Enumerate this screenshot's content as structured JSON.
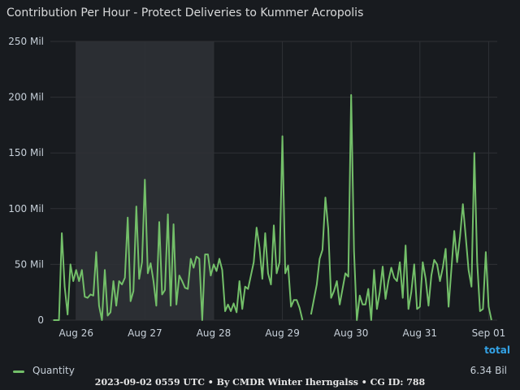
{
  "panel": {
    "title": "Contribution Per Hour - Protect Deliveries to Kummer Acropolis",
    "footer": "2023-09-02 0559 UTC • By CMDR Winter Iherngalss • CG ID: 788"
  },
  "legend": {
    "header": "total",
    "items": [
      {
        "name": "Quantity",
        "total": "6.34 Bil",
        "color": "#73bf69"
      }
    ]
  },
  "colors": {
    "background": "#181b1f",
    "grid": "#2f3136",
    "highlight": "#2b2e33",
    "series": "#73bf69",
    "accent": "#33a2e5"
  },
  "chart_data": {
    "type": "line",
    "title": "Contribution Per Hour - Protect Deliveries to Kummer Acropolis",
    "xlabel": "",
    "ylabel": "",
    "ylim": [
      0,
      250
    ],
    "yunit": "Mil",
    "yticks": [
      "0",
      "50 Mil",
      "100 Mil",
      "150 Mil",
      "200 Mil",
      "250 Mil"
    ],
    "xlim": [
      "Aug 25 15:00",
      "Sep 01 19:00"
    ],
    "xticks": [
      "Aug 26",
      "Aug 27",
      "Aug 28",
      "Aug 29",
      "Aug 30",
      "Aug 31",
      "Sep 01"
    ],
    "highlight_range": [
      "Aug 26",
      "Aug 28"
    ],
    "grid": true,
    "legend_position": "bottom",
    "series": [
      {
        "name": "Quantity",
        "x_unit": "hours since Aug 26 00:00",
        "points": [
          [
            -8,
            0
          ],
          [
            -6,
            0
          ],
          [
            -5,
            78
          ],
          [
            -4,
            30
          ],
          [
            -3,
            5
          ],
          [
            -2,
            50
          ],
          [
            -1,
            35
          ],
          [
            0,
            45
          ],
          [
            1,
            35
          ],
          [
            2,
            45
          ],
          [
            3,
            21
          ],
          [
            4,
            20
          ],
          [
            5,
            23
          ],
          [
            6,
            22
          ],
          [
            7,
            61
          ],
          [
            8,
            13
          ],
          [
            9,
            0
          ],
          [
            10,
            45
          ],
          [
            11,
            4
          ],
          [
            12,
            7
          ],
          [
            13,
            35
          ],
          [
            14,
            13
          ],
          [
            15,
            35
          ],
          [
            16,
            32
          ],
          [
            17,
            38
          ],
          [
            18,
            92
          ],
          [
            19,
            17
          ],
          [
            20,
            26
          ],
          [
            21,
            102
          ],
          [
            22,
            37
          ],
          [
            23,
            52
          ],
          [
            24,
            126
          ],
          [
            25,
            42
          ],
          [
            26,
            51
          ],
          [
            27,
            35
          ],
          [
            28,
            13
          ],
          [
            29,
            88
          ],
          [
            30,
            23
          ],
          [
            31,
            27
          ],
          [
            32,
            95
          ],
          [
            33,
            13
          ],
          [
            34,
            86
          ],
          [
            35,
            14
          ],
          [
            36,
            40
          ],
          [
            37,
            35
          ],
          [
            38,
            29
          ],
          [
            39,
            28
          ],
          [
            40,
            55
          ],
          [
            41,
            47
          ],
          [
            42,
            57
          ],
          [
            43,
            55
          ],
          [
            44,
            0
          ],
          [
            45,
            59
          ],
          [
            46,
            59
          ],
          [
            47,
            40
          ],
          [
            48,
            50
          ],
          [
            49,
            44
          ],
          [
            50,
            55
          ],
          [
            51,
            45
          ],
          [
            52,
            8
          ],
          [
            53,
            14
          ],
          [
            54,
            8
          ],
          [
            55,
            15
          ],
          [
            56,
            7
          ],
          [
            57,
            35
          ],
          [
            58,
            10
          ],
          [
            59,
            30
          ],
          [
            60,
            28
          ],
          [
            62,
            52
          ],
          [
            63,
            83
          ],
          [
            64,
            65
          ],
          [
            65,
            37
          ],
          [
            66,
            78
          ],
          [
            67,
            42
          ],
          [
            68,
            32
          ],
          [
            69,
            85
          ],
          [
            70,
            42
          ],
          [
            71,
            52
          ],
          [
            72,
            165
          ],
          [
            73,
            42
          ],
          [
            74,
            49
          ],
          [
            75,
            12
          ],
          [
            76,
            18
          ],
          [
            77,
            18
          ],
          [
            78,
            11
          ],
          [
            79,
            0
          ],
          [
            null,
            null
          ],
          [
            82,
            5
          ],
          [
            84,
            32
          ],
          [
            85,
            55
          ],
          [
            86,
            63
          ],
          [
            87,
            110
          ],
          [
            88,
            82
          ],
          [
            89,
            20
          ],
          [
            90,
            26
          ],
          [
            91,
            35
          ],
          [
            92,
            14
          ],
          [
            93,
            28
          ],
          [
            94,
            42
          ],
          [
            95,
            39
          ],
          [
            96,
            202
          ],
          [
            97,
            62
          ],
          [
            98,
            0
          ],
          [
            99,
            22
          ],
          [
            100,
            14
          ],
          [
            101,
            14
          ],
          [
            102,
            28
          ],
          [
            103,
            0
          ],
          [
            104,
            45
          ],
          [
            105,
            10
          ],
          [
            106,
            25
          ],
          [
            107,
            48
          ],
          [
            108,
            19
          ],
          [
            109,
            35
          ],
          [
            110,
            47
          ],
          [
            111,
            38
          ],
          [
            112,
            35
          ],
          [
            113,
            52
          ],
          [
            114,
            20
          ],
          [
            115,
            67
          ],
          [
            116,
            10
          ],
          [
            117,
            25
          ],
          [
            118,
            50
          ],
          [
            119,
            10
          ],
          [
            120,
            12
          ],
          [
            121,
            52
          ],
          [
            122,
            37
          ],
          [
            123,
            13
          ],
          [
            124,
            40
          ],
          [
            125,
            54
          ],
          [
            126,
            50
          ],
          [
            127,
            35
          ],
          [
            128,
            47
          ],
          [
            129,
            64
          ],
          [
            130,
            12
          ],
          [
            131,
            46
          ],
          [
            132,
            80
          ],
          [
            133,
            52
          ],
          [
            134,
            75
          ],
          [
            135,
            104
          ],
          [
            136,
            75
          ],
          [
            137,
            45
          ],
          [
            138,
            30
          ],
          [
            139,
            150
          ],
          [
            140,
            52
          ],
          [
            141,
            8
          ],
          [
            142,
            10
          ],
          [
            143,
            61
          ],
          [
            144,
            12
          ],
          [
            145,
            0
          ]
        ]
      }
    ]
  }
}
